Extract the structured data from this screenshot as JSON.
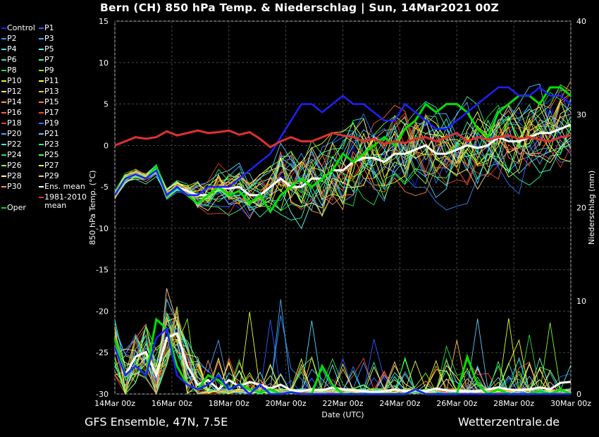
{
  "header": {
    "title": "Bern  (CH)  850 hPa Temp. & Niederschlag | Sun, 14Mar2021 00Z"
  },
  "footer": {
    "model": "GFS Ensemble, 47N, 7.5E",
    "source": "Wetterzentrale.de"
  },
  "colors": {
    "background": "#000000",
    "grid": "#555555",
    "oper": "#00e000",
    "ens_mean": "#ffffff",
    "clim": "#e03030",
    "control": "#2020ff"
  },
  "chart_data": {
    "type": "line",
    "title": "Bern  (CH)  850 hPa Temp. & Niederschlag | Sun, 14Mar2021 00Z",
    "xlabel": "Date (UTC)",
    "ylabel": "850 hPa Temp. (°C)",
    "y2label": "Niederschlag (mm)",
    "ylim": [
      -30,
      15
    ],
    "y2lim": [
      0,
      40
    ],
    "xlim_days": [
      0,
      16
    ],
    "x_tick_labels": [
      "14Mar 00z",
      "16Mar 00z",
      "18Mar 00z",
      "20Mar 00z",
      "22Mar 00z",
      "24Mar 00z",
      "26Mar 00z",
      "28Mar 00z",
      "30Mar 00z"
    ],
    "y_tick_labels": [
      "15",
      "10",
      "5",
      "0",
      "-5",
      "-10",
      "-15",
      "-20",
      "-25",
      "-30"
    ],
    "y2_tick_labels": [
      "40",
      "30",
      "20",
      "10",
      "0"
    ],
    "grid": true,
    "legend": {
      "placement": "left",
      "col1": [
        "Control",
        "P2",
        "P4",
        "P6",
        "P8",
        "P10",
        "P12",
        "P14",
        "P16",
        "P18",
        "P20",
        "P22",
        "P24",
        "P26",
        "P28",
        "P30",
        "",
        "Oper"
      ],
      "col2": [
        "P1",
        "P3",
        "P5",
        "P7",
        "P9",
        "P11",
        "P13",
        "P15",
        "P17",
        "P19",
        "P21",
        "P23",
        "P25",
        "P27",
        "P29",
        "Ens. mean",
        "1981-2010",
        "mean"
      ]
    },
    "member_colors": [
      "#2020ff",
      "#2a5cff",
      "#2f8fff",
      "#3fb0ff",
      "#58d8ff",
      "#5fffe8",
      "#3fe0b0",
      "#3fff90",
      "#20e040",
      "#7fff20",
      "#d8ff20",
      "#ffff30",
      "#ffe060",
      "#ffc040",
      "#ffa030",
      "#ff8030",
      "#ff6040",
      "#ff4030",
      "#e04020",
      "#3070ff",
      "#50a0ff",
      "#60c8ff",
      "#40ffd0",
      "#30ffa0",
      "#30e060",
      "#50ff50",
      "#a0ff40",
      "#f0ff40",
      "#ffff70",
      "#ffd080",
      "#ff9060"
    ],
    "series": [
      {
        "name": "Ens. mean",
        "color": "#ffffff",
        "temp": [
          -6,
          -4,
          -3.5,
          -4,
          -3,
          -6,
          -5,
          -5.5,
          -6,
          -6,
          -5,
          -5.2,
          -5,
          -6,
          -6,
          -5,
          -4,
          -5,
          -5,
          -4,
          -4,
          -3,
          -3,
          -2,
          -1.5,
          -1.5,
          -2,
          -1,
          -1,
          -0.5,
          0,
          -1,
          -1,
          -0.5,
          0,
          -0.3,
          0,
          1,
          0.5,
          0.5,
          1,
          1.5,
          1.5,
          2,
          2.5
        ],
        "precip": [
          5,
          2,
          4,
          4.5,
          2,
          6,
          6.5,
          3,
          1,
          1.5,
          0.5,
          1.5,
          0.8,
          1.3,
          1,
          0.6,
          1,
          0.4,
          0.3,
          0.5,
          0.4,
          0.7,
          0.5,
          0.4,
          0.3,
          0.2,
          0.3,
          0.5,
          0.3,
          0.4,
          0.3,
          0.6,
          0.4,
          0.3,
          0.3,
          0.3,
          0.5,
          0.7,
          0.5,
          0.4,
          0.5,
          0.7,
          0.5,
          1.2,
          1.3
        ]
      },
      {
        "name": "Oper",
        "color": "#00e000",
        "temp": [
          -6,
          -4,
          -3.5,
          -4,
          -2.5,
          -6,
          -5,
          -6,
          -7,
          -6,
          -5,
          -6,
          -5.5,
          -7,
          -6,
          -8,
          -6,
          -5,
          -4,
          -5,
          -4,
          -3,
          -1,
          -2,
          -1,
          0,
          1,
          0,
          2,
          3,
          5,
          4,
          5,
          5,
          4,
          2,
          1,
          4,
          5,
          6,
          6,
          5,
          7,
          7,
          6
        ],
        "precip": [
          6,
          2,
          3,
          2,
          8,
          7,
          3,
          1,
          0.5,
          2,
          1.5,
          0.5,
          1,
          0.5,
          0.2,
          0.5,
          0,
          0.2,
          0,
          0,
          3,
          1,
          0,
          0,
          0,
          0,
          0,
          0,
          0,
          0.5,
          0,
          0,
          0,
          0,
          4,
          1,
          0,
          0.5,
          0,
          0,
          0,
          0.3,
          0,
          0.5,
          0
        ]
      },
      {
        "name": "Control",
        "color": "#2020ff",
        "temp": [
          -6,
          -4,
          -3.5,
          -4,
          -3,
          -6,
          -5,
          -6,
          -6,
          -5,
          -5,
          -5,
          -4,
          -3,
          -2,
          -1,
          1,
          3,
          5,
          5,
          4,
          5,
          6,
          5,
          5,
          4,
          3,
          3,
          5,
          4,
          3,
          2,
          2,
          3,
          4,
          5,
          6,
          7,
          7,
          6,
          6,
          7,
          6,
          6,
          5
        ],
        "precip": [
          5,
          2,
          3,
          2,
          6,
          7,
          2,
          1,
          0.5,
          1,
          2,
          0.5,
          1,
          0,
          1,
          0,
          0,
          0.2,
          0,
          0,
          0,
          0,
          0,
          0,
          0,
          0,
          0,
          0,
          0,
          0.5,
          0,
          0,
          0,
          0,
          0,
          0,
          0,
          0,
          0,
          0,
          0,
          0,
          0,
          0,
          0
        ]
      },
      {
        "name": "1981-2010 mean",
        "color": "#e03030",
        "temp": [
          0,
          0.5,
          1,
          0.8,
          1,
          1.7,
          1.2,
          1.5,
          1.8,
          1.5,
          1.6,
          1.8,
          1.3,
          1.6,
          0.8,
          -0.2,
          0.5,
          1,
          0.5,
          0.5,
          1,
          1.5,
          1.2,
          1,
          0.5,
          0.8,
          0.2,
          0.5,
          0.3,
          0.8,
          1,
          0.5,
          1,
          1.5,
          0.5,
          1,
          0.7,
          1,
          1.2,
          0.8,
          1,
          0.7,
          0.5,
          1,
          1.2
        ]
      }
    ]
  }
}
